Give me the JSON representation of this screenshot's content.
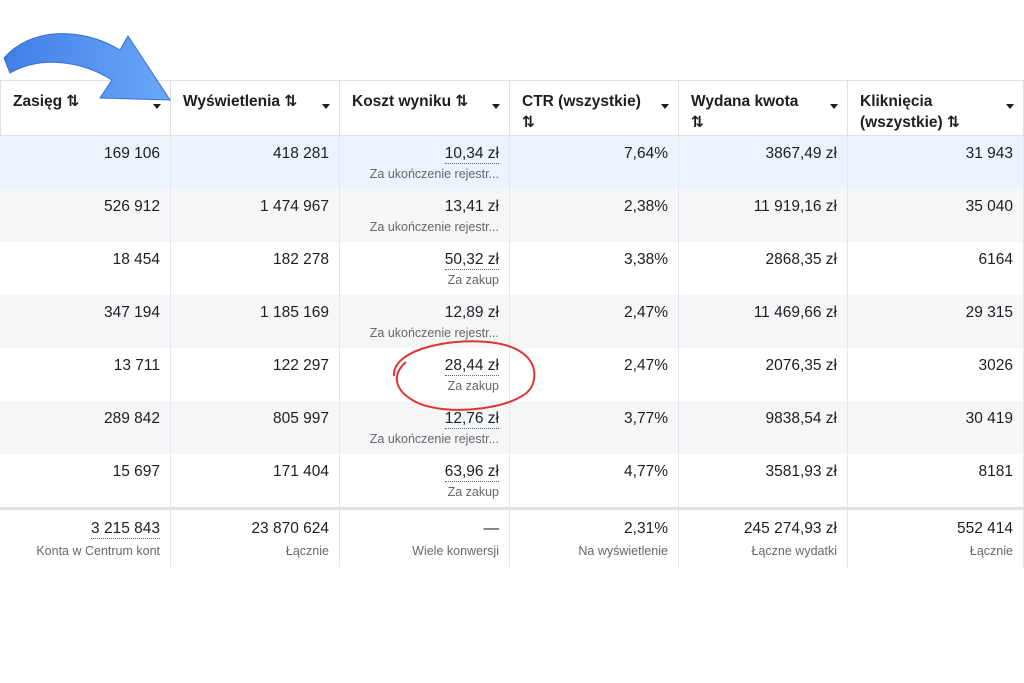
{
  "columns": [
    {
      "label": "Zasięg ⇅",
      "lines": [
        "Zasięg ⇅"
      ]
    },
    {
      "label": "Wyświetlenia ⇅",
      "lines": [
        "Wyświetlenia ⇅"
      ]
    },
    {
      "label": "Koszt wyniku ⇅",
      "lines": [
        "Koszt wyniku ⇅"
      ]
    },
    {
      "label": "CTR (wszystkie) ⇅",
      "lines": [
        "CTR (wszystkie)",
        "⇅"
      ]
    },
    {
      "label": "Wydana kwota ⇅",
      "lines": [
        "Wydana kwota",
        "⇅"
      ]
    },
    {
      "label": "Kliknięcia (wszystkie) ⇅",
      "lines": [
        "Kliknięcia",
        "(wszystkie) ⇅"
      ]
    }
  ],
  "rows": [
    {
      "reach": "169 106",
      "impressions": "418 281",
      "cost": "10,34 zł",
      "cost_sub": "Za ukończenie rejestr...",
      "ctr": "7,64%",
      "spent": "3867,49 zł",
      "clicks": "31 943",
      "highlight": true,
      "dotted": true
    },
    {
      "reach": "526 912",
      "impressions": "1 474 967",
      "cost": "13,41 zł",
      "cost_sub": "Za ukończenie rejestr...",
      "ctr": "2,38%",
      "spent": "11 919,16 zł",
      "clicks": "35 040",
      "highlight": false,
      "dotted": false
    },
    {
      "reach": "18 454",
      "impressions": "182 278",
      "cost": "50,32 zł",
      "cost_sub": "Za zakup",
      "ctr": "3,38%",
      "spent": "2868,35 zł",
      "clicks": "6164",
      "highlight": false,
      "dotted": true
    },
    {
      "reach": "347 194",
      "impressions": "1 185 169",
      "cost": "12,89 zł",
      "cost_sub": "Za ukończenie rejestr...",
      "ctr": "2,47%",
      "spent": "11 469,66 zł",
      "clicks": "29 315",
      "highlight": false,
      "dotted": false
    },
    {
      "reach": "13 711",
      "impressions": "122 297",
      "cost": "28,44 zł",
      "cost_sub": "Za zakup",
      "ctr": "2,47%",
      "spent": "2076,35 zł",
      "clicks": "3026",
      "highlight": false,
      "dotted": true
    },
    {
      "reach": "289 842",
      "impressions": "805 997",
      "cost": "12,76 zł",
      "cost_sub": "Za ukończenie rejestr...",
      "ctr": "3,77%",
      "spent": "9838,54 zł",
      "clicks": "30 419",
      "highlight": false,
      "dotted": true
    },
    {
      "reach": "15 697",
      "impressions": "171 404",
      "cost": "63,96 zł",
      "cost_sub": "Za zakup",
      "ctr": "4,77%",
      "spent": "3581,93 zł",
      "clicks": "8181",
      "highlight": false,
      "dotted": true
    }
  ],
  "totals": {
    "reach": "3 215 843",
    "reach_sub": "Konta w Centrum kont",
    "impressions": "23 870 624",
    "impressions_sub": "Łącznie",
    "cost": "—",
    "cost_sub": "Wiele konwersji",
    "ctr": "2,31%",
    "ctr_sub": "Na wyświetlenie",
    "spent": "245 274,93 zł",
    "spent_sub": "Łączne wydatki",
    "clicks": "552 414",
    "clicks_sub": "Łącznie"
  },
  "colors": {
    "highlight_row": "#ebf3fd",
    "alt_row": "#f5f6f7",
    "arrow": "#4d8ef0",
    "annotation_circle": "#e03434"
  },
  "icons": {
    "sort": "sort-icon",
    "dropdown": "caret-down-icon",
    "annotation_arrow": "curved-arrow-icon"
  }
}
